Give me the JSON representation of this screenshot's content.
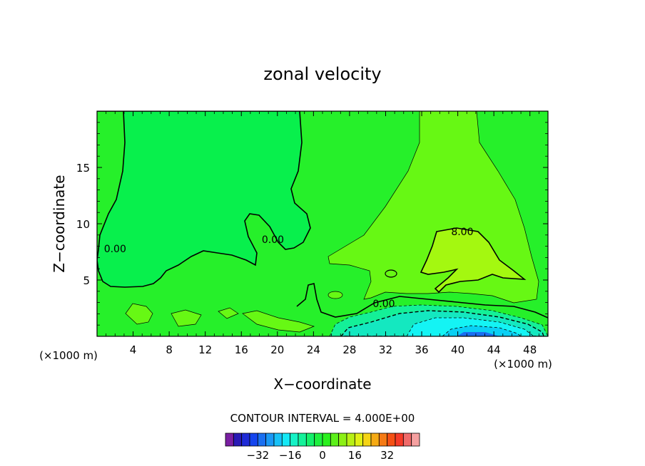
{
  "chart_data": {
    "type": "heatmap",
    "title": "zonal velocity",
    "xlabel": "X−coordinate",
    "ylabel": "Z−coordinate",
    "x_unit_label": "(×1000 m)",
    "z_unit_label": "(×1000 m)",
    "xlim": [
      0,
      50
    ],
    "ylim": [
      0,
      20
    ],
    "x_ticks": [
      4,
      8,
      12,
      16,
      20,
      24,
      28,
      32,
      36,
      40,
      44,
      48
    ],
    "y_ticks": [
      5,
      10,
      15
    ],
    "contour_interval_label": "CONTOUR INTERVAL = 4.000E+00",
    "contour_labels": [
      {
        "text": "0.00",
        "x": 2,
        "z": 7.8
      },
      {
        "text": "0.00",
        "x": 19.5,
        "z": 8.6
      },
      {
        "text": "0.00",
        "x": 31.8,
        "z": 2.9
      },
      {
        "text": "8.00",
        "x": 40.5,
        "z": 9.3
      }
    ],
    "colorbar": {
      "levels": [
        -40,
        -36,
        -32,
        -28,
        -24,
        -20,
        -16,
        -12,
        -8,
        -4,
        0,
        4,
        8,
        12,
        16,
        20,
        24,
        28,
        32,
        36,
        40
      ],
      "colors": [
        "#7a1fa2",
        "#2a1ab5",
        "#1f2bd6",
        "#1545ee",
        "#1a6ff0",
        "#1a98f5",
        "#17c1f7",
        "#14e8f5",
        "#14f2c6",
        "#14f29a",
        "#14f06b",
        "#1ef03f",
        "#2af01e",
        "#5cf01a",
        "#8cf015",
        "#b8f014",
        "#e0f014",
        "#f5d414",
        "#f5aa14",
        "#f57a14",
        "#f55014",
        "#f53a28",
        "#f06a6a",
        "#f5a0a0"
      ],
      "tick_labels": [
        "−32",
        "−16",
        "0",
        "16",
        "32"
      ],
      "tick_values": [
        -32,
        -16,
        0,
        16,
        32
      ]
    },
    "field_colors": {
      "background": "#26f02a",
      "zero_region": "#08f04c",
      "pos4": "#67f814",
      "pos8": "#a4f810",
      "neg4": "#14f098",
      "neg8": "#14e8c0",
      "neg12": "#14f4f4",
      "neg16": "#0ad0f4",
      "neg20": "#1a6ff0"
    }
  }
}
